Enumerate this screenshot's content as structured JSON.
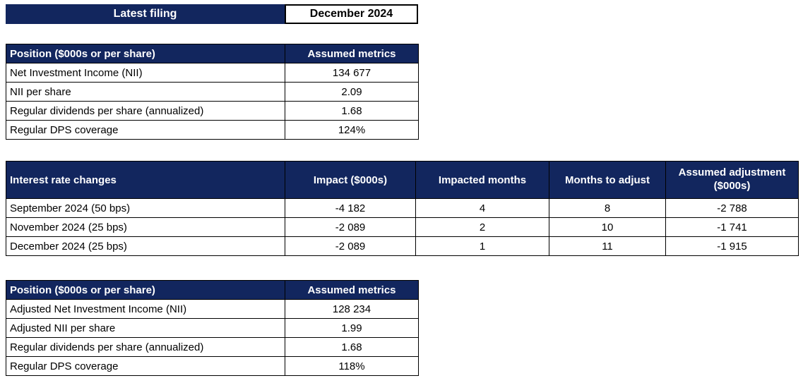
{
  "colors": {
    "navy": "#12265e",
    "border": "#000000",
    "header_text": "#ffffff"
  },
  "top_bar": {
    "label": "Latest filing",
    "value": "December 2024"
  },
  "filing_table": {
    "headers": [
      "Position ($000s or per share)",
      "Assumed metrics"
    ],
    "rows": [
      [
        "Net Investment Income (NII)",
        "134 677"
      ],
      [
        "NII per share",
        "2.09"
      ],
      [
        "Regular dividends per share (annualized)",
        "1.68"
      ],
      [
        "Regular DPS coverage",
        "124%"
      ]
    ]
  },
  "rate_changes_table": {
    "headers": [
      "Interest rate changes",
      "Impact ($000s)",
      "Impacted months",
      "Months to adjust",
      "Assumed adjustment ($000s)"
    ],
    "rows": [
      [
        "September 2024 (50 bps)",
        "-4 182",
        "4",
        "8",
        "-2 788"
      ],
      [
        "November 2024 (25 bps)",
        "-2 089",
        "2",
        "10",
        "-1 741"
      ],
      [
        "December 2024 (25 bps)",
        "-2 089",
        "1",
        "11",
        "-1 915"
      ]
    ]
  },
  "adjusted_table": {
    "headers": [
      "Position ($000s or per share)",
      "Assumed metrics"
    ],
    "rows": [
      [
        "Adjusted Net Investment Income (NII)",
        "128 234"
      ],
      [
        "Adjusted NII per share",
        "1.99"
      ],
      [
        "Regular dividends per share (annualized)",
        "1.68"
      ],
      [
        "Regular DPS coverage",
        "118%"
      ]
    ]
  }
}
